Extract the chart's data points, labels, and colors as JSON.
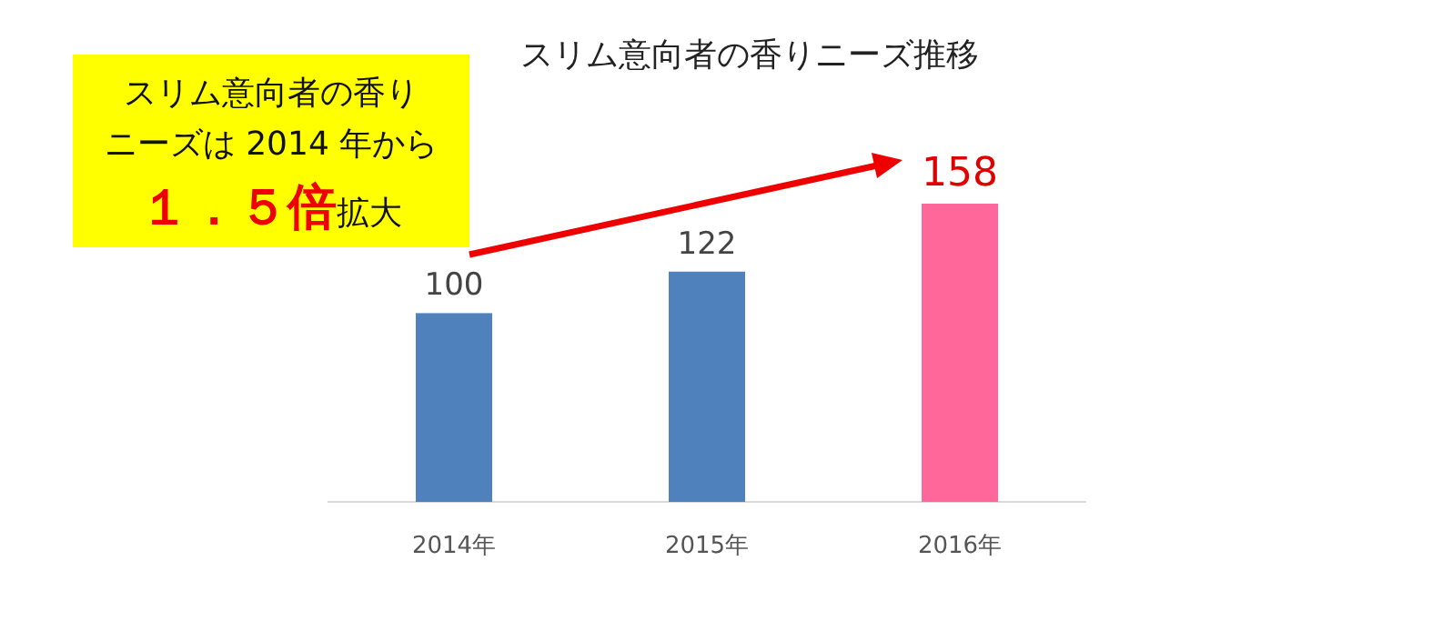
{
  "chart_data": {
    "type": "bar",
    "title": "スリム意向者の香りニーズ推移",
    "categories": [
      "2014年",
      "2015年",
      "2016年"
    ],
    "values": [
      100,
      122,
      158
    ],
    "colors": [
      "#4f81bd",
      "#4f81bd",
      "#ff6699"
    ],
    "data_labels": true,
    "annotations": [
      "スリム意向者の香り",
      "ニーズは 2014 年から",
      "１．５倍",
      "拡大"
    ]
  }
}
